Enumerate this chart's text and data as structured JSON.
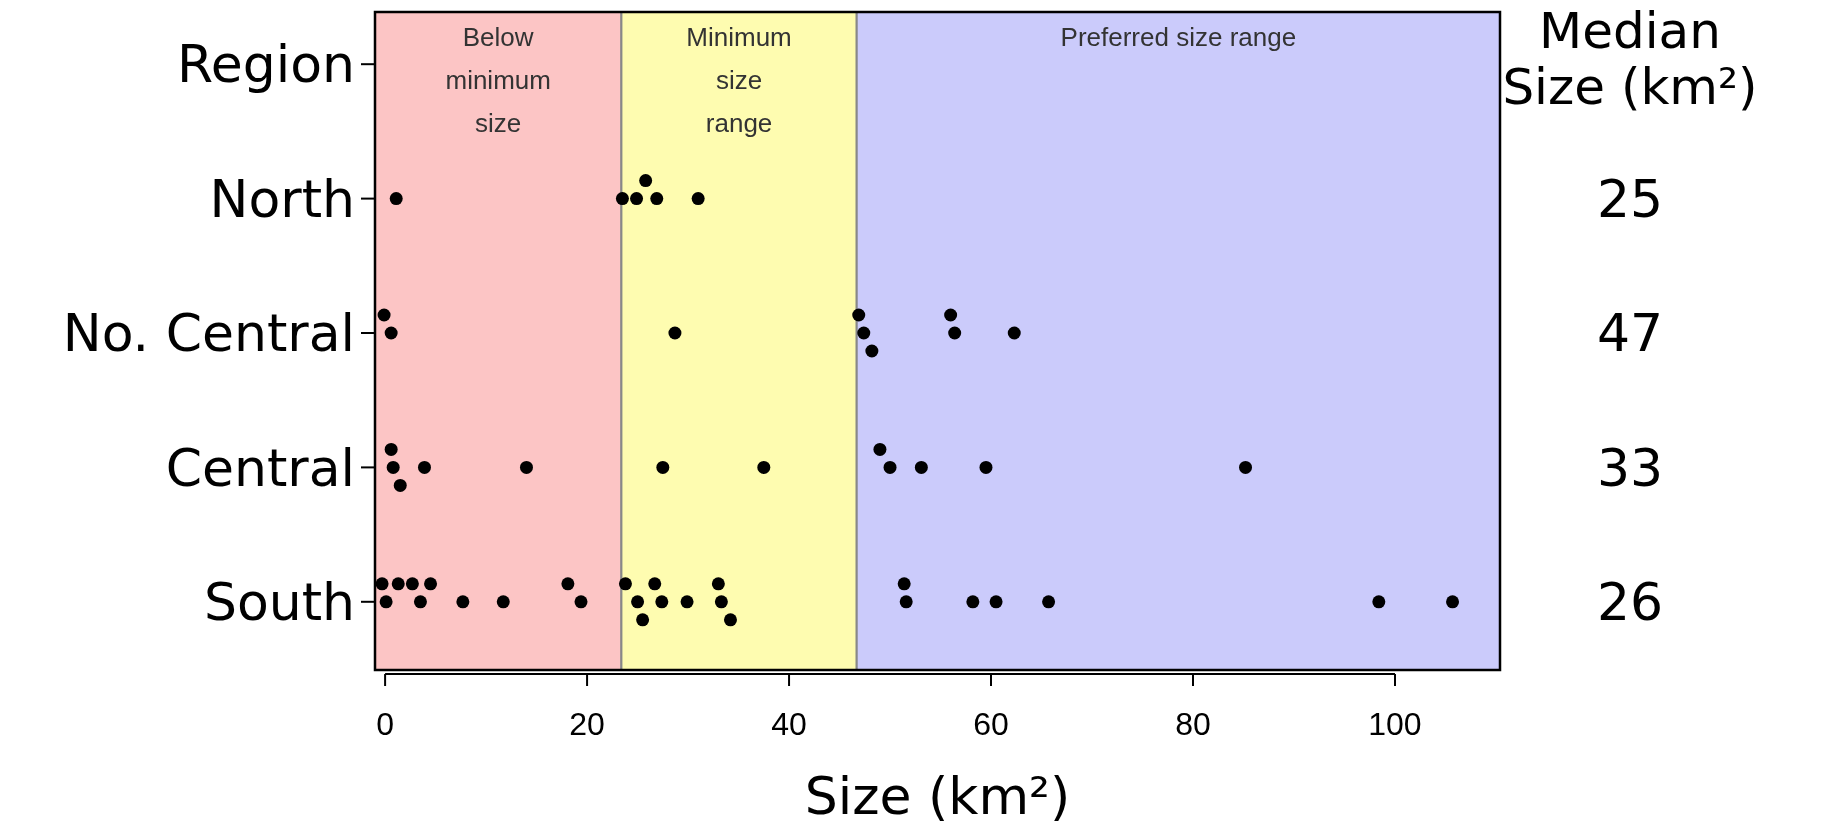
{
  "chart_data": {
    "type": "scatter",
    "orientation": "horizontal",
    "xlabel": "Size (km²)",
    "y2label": "Median Size (km²)",
    "xlim": [
      -1,
      110.4
    ],
    "xticks": [
      0,
      20,
      40,
      60,
      80,
      100
    ],
    "categories": [
      "Region",
      "North",
      "No. Central",
      "Central",
      "South"
    ],
    "y2_categories": [
      null,
      "25",
      "47",
      "33",
      "26"
    ],
    "bands": [
      {
        "axis": "x",
        "from": -1,
        "to": 23.4,
        "label": "Below minimum size",
        "color": "#fcc5c5"
      },
      {
        "axis": "x",
        "from": 23.4,
        "to": 46.7,
        "label": "Minimum size range",
        "color": "#fefcb0"
      },
      {
        "axis": "x",
        "from": 46.7,
        "to": 110.4,
        "label": "Preferred size range",
        "color": "#cbcbfb"
      }
    ],
    "marker": "circle",
    "grid": false,
    "series": [
      {
        "color": "#000000",
        "x": [
          "North",
          "North",
          "North",
          "North",
          "North",
          "North",
          "No. Central",
          "No. Central",
          "No. Central",
          "No. Central",
          "No. Central",
          "No. Central",
          "No. Central",
          "No. Central",
          "No. Central",
          "Central",
          "Central",
          "Central",
          "Central",
          "Central",
          "Central",
          "Central",
          "Central",
          "Central",
          "Central",
          "Central",
          "Central",
          "South",
          "South",
          "South",
          "South",
          "South",
          "South",
          "South",
          "South",
          "South",
          "South",
          "South",
          "South",
          "South",
          "South",
          "South",
          "South",
          "South",
          "South",
          "South",
          "South",
          "South",
          "South",
          "South",
          "South",
          "South",
          "South"
        ],
        "values": [
          1.1,
          23.5,
          24.9,
          26.9,
          25.8,
          31.0,
          0.6,
          -0.1,
          28.7,
          47.4,
          46.9,
          48.2,
          56.4,
          56.0,
          62.3,
          0.8,
          0.6,
          3.9,
          1.5,
          14.0,
          27.5,
          37.5,
          50.0,
          49.0,
          53.1,
          59.5,
          85.2,
          0.1,
          3.5,
          19.4,
          25.0,
          27.4,
          33.3,
          51.6,
          -0.3,
          2.7,
          7.7,
          11.7,
          18.1,
          23.8,
          26.7,
          29.9,
          33.0,
          51.4,
          58.2,
          60.5,
          65.7,
          98.4,
          105.7,
          1.3,
          4.5,
          25.5,
          34.2
        ]
      }
    ]
  }
}
